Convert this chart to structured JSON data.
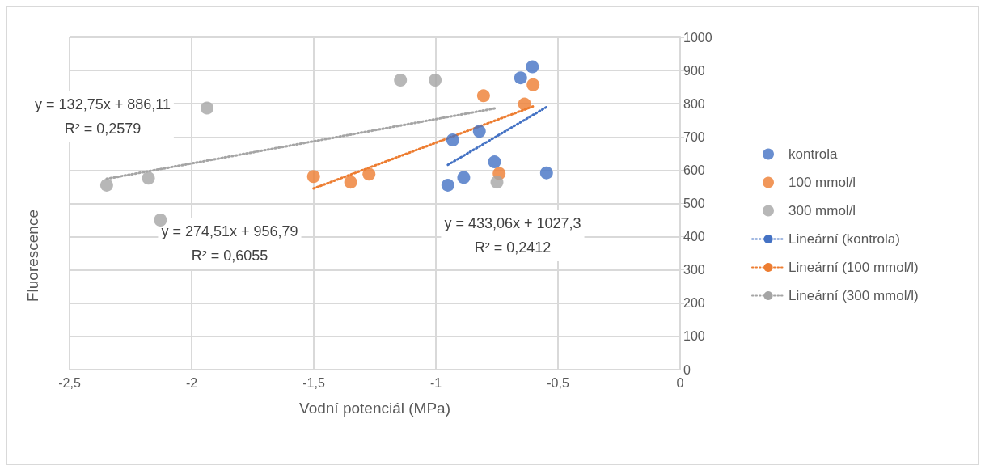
{
  "chart_data": {
    "type": "scatter",
    "xlabel": "Vodní potenciál (MPa)",
    "ylabel": "Fluorescence",
    "xlim": [
      -2.5,
      0
    ],
    "xticks": [
      {
        "value": -2.5,
        "label": "-2,5"
      },
      {
        "value": -2,
        "label": "-2"
      },
      {
        "value": -1.5,
        "label": "-1,5"
      },
      {
        "value": -1,
        "label": "-1"
      },
      {
        "value": -0.5,
        "label": "-0,5"
      },
      {
        "value": 0,
        "label": "0"
      }
    ],
    "ylim": [
      0,
      1000
    ],
    "yticks": [
      0,
      100,
      200,
      300,
      400,
      500,
      600,
      700,
      800,
      900,
      1000
    ],
    "grid": true,
    "legend": "right",
    "marker": "circle",
    "series": [
      {
        "name": "kontrola",
        "color": "#4472c4",
        "x": [
          -0.605,
          -0.653,
          -0.931,
          -0.822,
          -0.76,
          -0.886,
          -0.951,
          -0.547
        ],
        "values": [
          911,
          878,
          691,
          717,
          625,
          578,
          555,
          592
        ]
      },
      {
        "name": "100 mmol/l",
        "color": "#ed7d31",
        "x": [
          -1.501,
          -1.349,
          -1.274,
          -0.805,
          -0.602,
          -0.637,
          -0.741
        ],
        "values": [
          581,
          564,
          588,
          824,
          857,
          799,
          590
        ]
      },
      {
        "name": "300 mmol/l",
        "color": "#a5a5a5",
        "x": [
          -2.348,
          -2.177,
          -2.128,
          -1.937,
          -1.145,
          -1.003,
          -0.75
        ],
        "values": [
          555,
          576,
          450,
          787,
          871,
          871,
          564
        ]
      },
      {
        "name": "Lineární (kontrola)",
        "type": "line",
        "line_style": "dotted",
        "marker": "none",
        "color": "#4472c4",
        "x": [
          -0.951,
          -0.547
        ],
        "values": [
          616,
          790
        ]
      },
      {
        "name": "Lineární (100 mmol/l)",
        "type": "line",
        "line_style": "dotted",
        "marker": "none",
        "color": "#ed7d31",
        "x": [
          -1.501,
          -0.602
        ],
        "values": [
          545,
          792
        ]
      },
      {
        "name": "Lineární (300 mmol/l)",
        "type": "line",
        "line_style": "dotted",
        "marker": "none",
        "color": "#a5a5a5",
        "x": [
          -2.348,
          -0.75
        ],
        "values": [
          574,
          787
        ]
      }
    ],
    "annotations": [
      "y = 132,75x + 886,11\nR² = 0,2579",
      "y = 274,51x + 956,79\nR² = 0,6055",
      "y = 433,06x + 1027,3\nR² = 0,2412"
    ]
  }
}
